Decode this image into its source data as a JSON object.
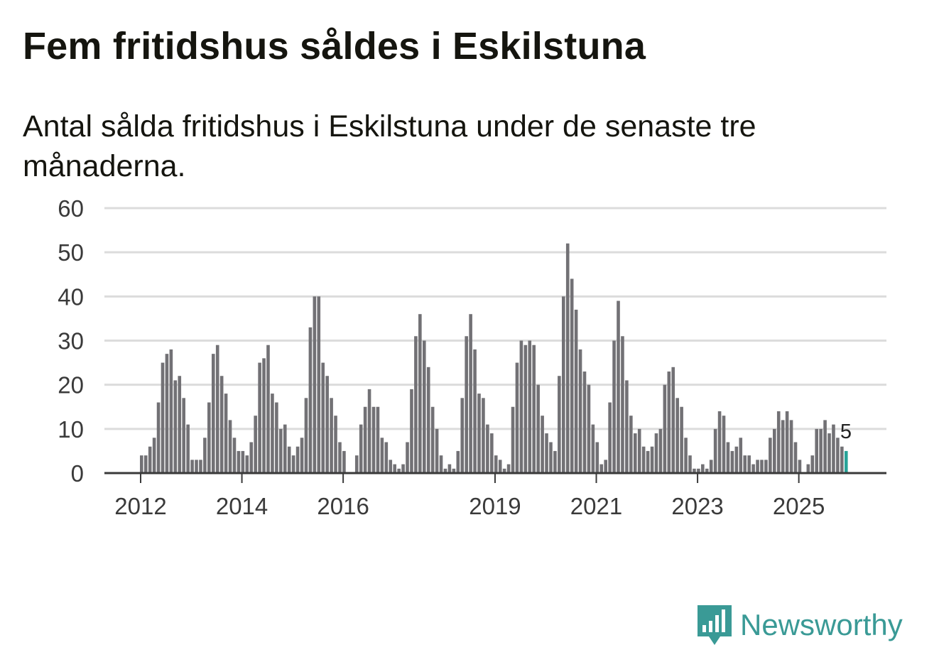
{
  "header": {
    "title": "Fem fritidshus såldes i Eskilstuna",
    "subtitle": "Antal sålda fritidshus i Eskilstuna under de senaste tre månaderna."
  },
  "brand": {
    "name": "Newsworthy",
    "icon": "newsworthy-logo-icon",
    "color": "#3a9a96"
  },
  "chart_data": {
    "type": "bar",
    "title": "Fem fritidshus såldes i Eskilstuna",
    "subtitle": "Antal sålda fritidshus i Eskilstuna under de senaste tre månaderna.",
    "x_tick_labels": [
      "2012",
      "2014",
      "2016",
      "2019",
      "2021",
      "2023",
      "2025"
    ],
    "y_ticks": [
      0,
      10,
      20,
      30,
      40,
      50,
      60
    ],
    "ylim": [
      0,
      60
    ],
    "grid": true,
    "bar_color": "#727175",
    "highlight_color": "#27a398",
    "highlight_label": "5",
    "series": [
      {
        "values": [
          4,
          4,
          6,
          8,
          16,
          25,
          27,
          28,
          21,
          22,
          17,
          11,
          3,
          3,
          3,
          8,
          16,
          27,
          29,
          22,
          18,
          12,
          8,
          5,
          5,
          4,
          7,
          13,
          25,
          26,
          29,
          18,
          16,
          10,
          11,
          6,
          4,
          6,
          8,
          17,
          33,
          40,
          40,
          25,
          22,
          17,
          13,
          7,
          5,
          0,
          0,
          4,
          11,
          15,
          19,
          15,
          15,
          8,
          7,
          3,
          2,
          1,
          2,
          7,
          19,
          31,
          36,
          30,
          24,
          15,
          10,
          4,
          1,
          2,
          1,
          5,
          17,
          31,
          36,
          28,
          18,
          17,
          11,
          9,
          4,
          3,
          1,
          2,
          15,
          25,
          30,
          29,
          30,
          29,
          20,
          13,
          9,
          7,
          5,
          22,
          40,
          52,
          44,
          37,
          28,
          23,
          20,
          11,
          7,
          2,
          3,
          16,
          30,
          39,
          31,
          21,
          13,
          9,
          10,
          6,
          5,
          6,
          9,
          10,
          20,
          23,
          24,
          17,
          15,
          8,
          4,
          1,
          1,
          2,
          1,
          3,
          10,
          14,
          13,
          7,
          5,
          6,
          8,
          4,
          4,
          2,
          3,
          3,
          3,
          8,
          10,
          14,
          12,
          14,
          12,
          7,
          3,
          0,
          2,
          4,
          10,
          10,
          12,
          9,
          11,
          8,
          6,
          5
        ]
      }
    ]
  }
}
